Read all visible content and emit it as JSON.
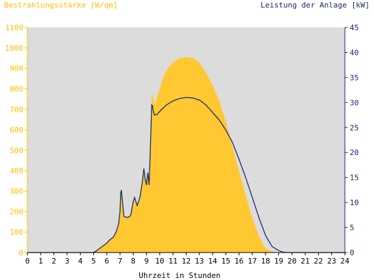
{
  "chart_data": {
    "type": "area",
    "ylabel_left": "Bestrahlungsstärke [W/qm]",
    "ylabel_right": "Leistung der Anlage [kW]",
    "xlabel": "Uhrzeit in Stunden",
    "xlim": [
      0,
      24
    ],
    "ylim_left": [
      0,
      1100
    ],
    "ylim_right": [
      0,
      45
    ],
    "x_ticks": [
      "0",
      "1",
      "2",
      "3",
      "4",
      "5",
      "6",
      "7",
      "8",
      "9",
      "10",
      "11",
      "12",
      "13",
      "14",
      "15",
      "16",
      "17",
      "18",
      "19",
      "20",
      "21",
      "22",
      "23",
      "24"
    ],
    "y_ticks_left": [
      "0",
      "100",
      "200",
      "300",
      "400",
      "500",
      "600",
      "700",
      "800",
      "900",
      "1000",
      "1100"
    ],
    "y_ticks_right": [
      "0",
      "5",
      "10",
      "15",
      "20",
      "25",
      "30",
      "35",
      "40",
      "45"
    ],
    "grid": false,
    "series": [
      {
        "name": "Bestrahlungsstärke [W/qm]",
        "axis": "left",
        "kind": "area",
        "color": "#ffc832",
        "x": [
          0,
          5,
          5.2,
          5.4,
          5.6,
          5.8,
          6.0,
          6.2,
          6.5,
          6.7,
          6.8,
          6.9,
          7.0,
          7.05,
          7.1,
          7.2,
          7.3,
          7.6,
          7.8,
          8.0,
          8.1,
          8.2,
          8.3,
          8.5,
          8.7,
          8.8,
          8.9,
          9.0,
          9.1,
          9.2,
          9.3,
          9.4,
          9.45,
          9.5,
          9.6,
          9.8,
          10,
          10.3,
          10.6,
          11,
          11.5,
          12,
          12.5,
          13,
          13.5,
          14,
          14.5,
          15,
          15.5,
          16,
          16.5,
          17,
          17.5,
          18,
          18.5,
          19,
          19.3,
          19.6,
          20,
          20.3,
          24
        ],
        "y": [
          0,
          0,
          5,
          15,
          25,
          35,
          45,
          60,
          75,
          100,
          120,
          140,
          200,
          290,
          305,
          240,
          175,
          170,
          180,
          250,
          270,
          250,
          230,
          270,
          350,
          410,
          360,
          330,
          390,
          330,
          520,
          760,
          780,
          760,
          720,
          760,
          800,
          860,
          900,
          930,
          950,
          955,
          950,
          930,
          880,
          820,
          740,
          640,
          520,
          400,
          280,
          170,
          80,
          20,
          5,
          0,
          0,
          0,
          0,
          0,
          0
        ]
      },
      {
        "name": "Leistung der Anlage [kW]",
        "axis": "right",
        "kind": "line",
        "color": "#1a2a6c",
        "x": [
          0,
          5,
          5.2,
          5.4,
          5.6,
          5.8,
          6.0,
          6.2,
          6.5,
          6.7,
          6.8,
          6.9,
          7.0,
          7.05,
          7.1,
          7.2,
          7.3,
          7.6,
          7.8,
          8.0,
          8.1,
          8.2,
          8.3,
          8.5,
          8.7,
          8.8,
          8.9,
          9.0,
          9.1,
          9.2,
          9.3,
          9.4,
          9.45,
          9.5,
          9.6,
          9.8,
          10,
          10.5,
          11,
          11.5,
          12,
          12.5,
          13,
          13.5,
          14,
          14.5,
          15,
          15.5,
          16,
          16.5,
          17,
          17.5,
          18,
          18.5,
          19,
          19.3,
          19.6,
          20,
          20.3,
          24
        ],
        "y": [
          0,
          0,
          0.3,
          0.7,
          1.1,
          1.5,
          1.9,
          2.5,
          3.1,
          4.1,
          4.9,
          5.8,
          8.2,
          11.8,
          12.5,
          9.8,
          7.2,
          7.0,
          7.4,
          10.2,
          11.0,
          10.2,
          9.4,
          11.0,
          14.3,
          16.8,
          14.7,
          13.5,
          16.0,
          13.5,
          21.3,
          29.5,
          29.3,
          28.5,
          27.5,
          27.6,
          28.2,
          29.5,
          30.3,
          30.8,
          31.0,
          30.9,
          30.5,
          29.5,
          28.0,
          26.5,
          24.5,
          22.0,
          18.6,
          15.0,
          11.0,
          7.0,
          3.4,
          1.2,
          0.4,
          0.1,
          0,
          0,
          0,
          0
        ]
      }
    ]
  }
}
